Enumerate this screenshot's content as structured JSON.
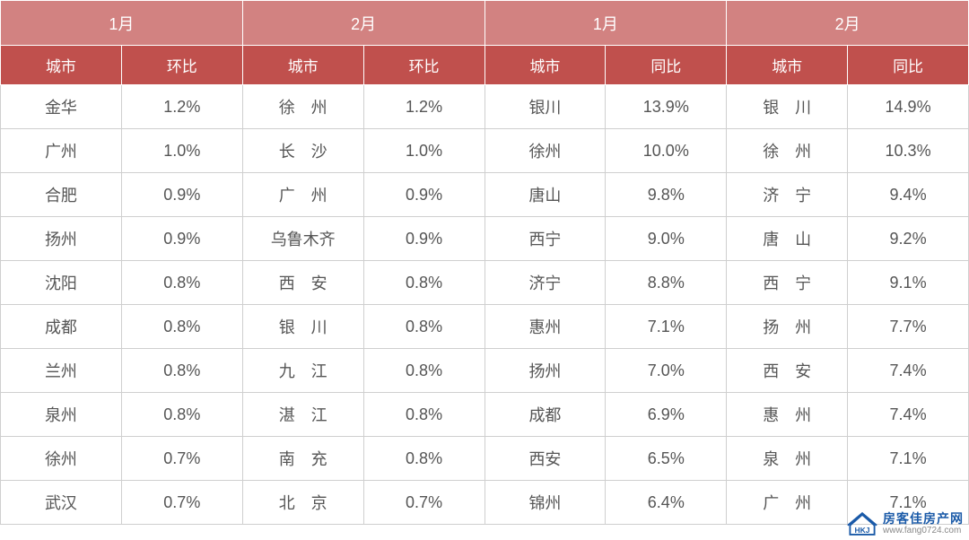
{
  "colors": {
    "header_light": "#d28281",
    "header_dark": "#c0504d",
    "border": "#cfcfcf",
    "text": "#555555",
    "header_text": "#ffffff"
  },
  "months": {
    "m1": "1月",
    "m2": "2月"
  },
  "subheaders": {
    "city": "城市",
    "mom": "环比",
    "yoy": "同比"
  },
  "rows": [
    {
      "c1": "金华",
      "v1": "1.2%",
      "c2": "徐　州",
      "v2": "1.2%",
      "c3": "银川",
      "v3": "13.9%",
      "c4": "银　川",
      "v4": "14.9%"
    },
    {
      "c1": "广州",
      "v1": "1.0%",
      "c2": "长　沙",
      "v2": "1.0%",
      "c3": "徐州",
      "v3": "10.0%",
      "c4": "徐　州",
      "v4": "10.3%"
    },
    {
      "c1": "合肥",
      "v1": "0.9%",
      "c2": "广　州",
      "v2": "0.9%",
      "c3": "唐山",
      "v3": "9.8%",
      "c4": "济　宁",
      "v4": "9.4%"
    },
    {
      "c1": "扬州",
      "v1": "0.9%",
      "c2": "乌鲁木齐",
      "v2": "0.9%",
      "c3": "西宁",
      "v3": "9.0%",
      "c4": "唐　山",
      "v4": "9.2%"
    },
    {
      "c1": "沈阳",
      "v1": "0.8%",
      "c2": "西　安",
      "v2": "0.8%",
      "c3": "济宁",
      "v3": "8.8%",
      "c4": "西　宁",
      "v4": "9.1%"
    },
    {
      "c1": "成都",
      "v1": "0.8%",
      "c2": "银　川",
      "v2": "0.8%",
      "c3": "惠州",
      "v3": "7.1%",
      "c4": "扬　州",
      "v4": "7.7%"
    },
    {
      "c1": "兰州",
      "v1": "0.8%",
      "c2": "九　江",
      "v2": "0.8%",
      "c3": "扬州",
      "v3": "7.0%",
      "c4": "西　安",
      "v4": "7.4%"
    },
    {
      "c1": "泉州",
      "v1": "0.8%",
      "c2": "湛　江",
      "v2": "0.8%",
      "c3": "成都",
      "v3": "6.9%",
      "c4": "惠　州",
      "v4": "7.4%"
    },
    {
      "c1": "徐州",
      "v1": "0.7%",
      "c2": "南　充",
      "v2": "0.8%",
      "c3": "西安",
      "v3": "6.5%",
      "c4": "泉　州",
      "v4": "7.1%"
    },
    {
      "c1": "武汉",
      "v1": "0.7%",
      "c2": "北　京",
      "v2": "0.7%",
      "c3": "锦州",
      "v3": "6.4%",
      "c4": "广　州",
      "v4": "7.1%"
    }
  ],
  "watermark": {
    "brand": "房客佳房产网",
    "url": "www.fang0724.com"
  }
}
